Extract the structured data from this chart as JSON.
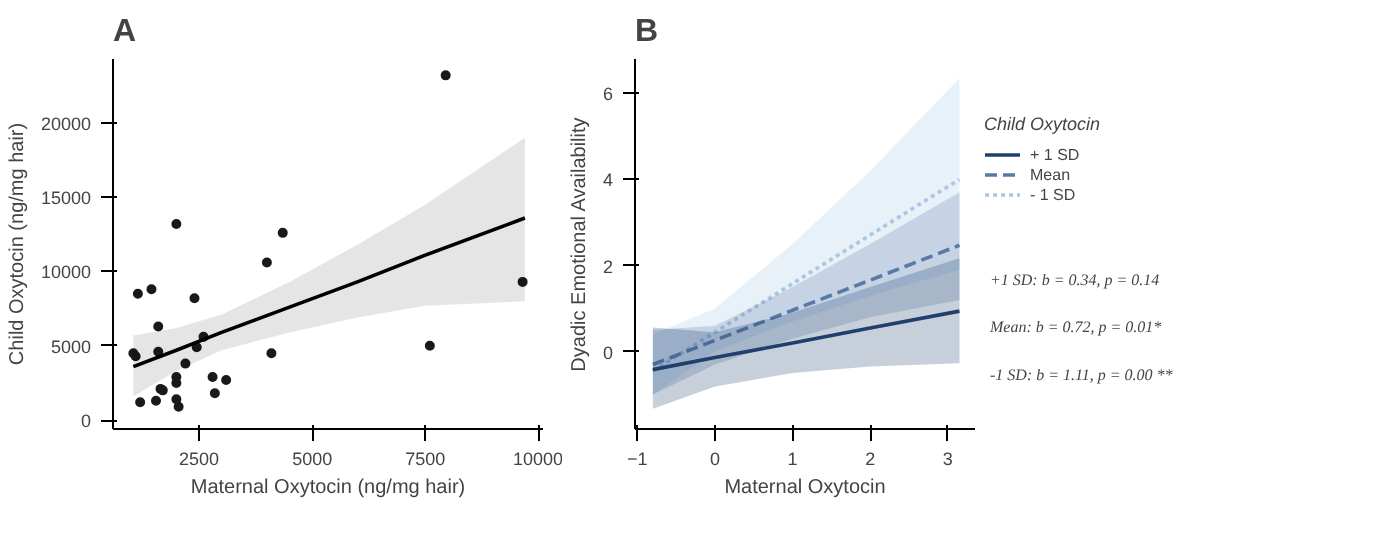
{
  "chart_data": [
    {
      "type": "scatter",
      "title": "A",
      "xlabel": "Maternal Oxytocin (ng/mg hair)",
      "ylabel": "Child Oxytocin (ng/mg hair)",
      "xlim": [
        600,
        10100
      ],
      "ylim": [
        -600,
        24300
      ],
      "xticks": [
        2500,
        5000,
        7500,
        10000
      ],
      "yticks": [
        0,
        5000,
        10000,
        15000,
        20000
      ],
      "grid": false,
      "legend": false,
      "marker": "circle",
      "series": [
        {
          "type": "scatter",
          "color": "#1a1a1a",
          "x": [
            1050,
            1100,
            1150,
            1200,
            1450,
            1550,
            1600,
            1600,
            1650,
            1700,
            2000,
            2000,
            2000,
            2000,
            2050,
            2200,
            2400,
            2450,
            2600,
            2800,
            2850,
            3100,
            4000,
            4100,
            4350,
            7600,
            7950,
            9650
          ],
          "values": [
            4500,
            4300,
            8500,
            1200,
            8800,
            1300,
            4600,
            6300,
            2100,
            2000,
            1400,
            13200,
            2900,
            2500,
            900,
            3800,
            8200,
            4900,
            5600,
            2900,
            1800,
            2700,
            10600,
            4500,
            12600,
            5000,
            23200,
            9300
          ]
        },
        {
          "type": "line",
          "color": "#000000",
          "line_style": "solid",
          "marker": "none",
          "x": [
            1050,
            2000,
            3000,
            4500,
            6000,
            7500,
            9700
          ],
          "values": [
            3600,
            4700,
            5900,
            7600,
            9300,
            11100,
            13600
          ],
          "lower": [
            1600,
            3300,
            4700,
            5900,
            6900,
            7700,
            8000
          ],
          "upper": [
            5700,
            6200,
            7100,
            9300,
            11800,
            14500,
            19000
          ]
        }
      ]
    },
    {
      "type": "line",
      "title": "B",
      "xlabel": "Maternal Oxytocin",
      "ylabel": "Dyadic Emotional Availability",
      "legend_title": "Child Oxytocin",
      "xlim": [
        -1.03,
        3.35
      ],
      "ylim": [
        -1.8,
        6.8
      ],
      "xticks": [
        -1,
        0,
        1,
        2,
        3
      ],
      "yticks": [
        0,
        2,
        4,
        6
      ],
      "grid": false,
      "legend": "right",
      "marker": "none",
      "annotations": [
        "+1 SD:   b = 0.34, p = 0.14",
        "Mean: b  = 0.72, p = 0.01*",
        "-1 SD: b  = 1.11, p = 0.00 **"
      ],
      "x": [
        -0.8,
        0,
        1,
        2,
        3.15
      ],
      "series": [
        {
          "name": "- 1 SD",
          "color": "#a9c6e3",
          "line_style": "dotted",
          "values": [
            -0.45,
            0.45,
            1.58,
            2.71,
            4.0
          ],
          "lower": [
            -1.0,
            0.0,
            0.7,
            1.3,
            1.9
          ],
          "upper": [
            0.4,
            1.0,
            2.5,
            4.2,
            6.35
          ]
        },
        {
          "name": "Mean",
          "color": "#5a7aa6",
          "line_style": "dashed",
          "values": [
            -0.3,
            0.26,
            0.96,
            1.66,
            2.47
          ],
          "lower": [
            -1.0,
            -0.3,
            0.3,
            0.8,
            1.2
          ],
          "upper": [
            0.5,
            0.6,
            1.5,
            2.5,
            3.7
          ]
        },
        {
          "name": "+ 1 SD",
          "color": "#1f3f6e",
          "line_style": "solid",
          "values": [
            -0.42,
            -0.14,
            0.2,
            0.55,
            0.94
          ],
          "lower": [
            -1.33,
            -0.81,
            -0.5,
            -0.35,
            -0.27
          ],
          "upper": [
            0.56,
            0.45,
            0.9,
            1.5,
            2.17
          ]
        }
      ]
    }
  ]
}
